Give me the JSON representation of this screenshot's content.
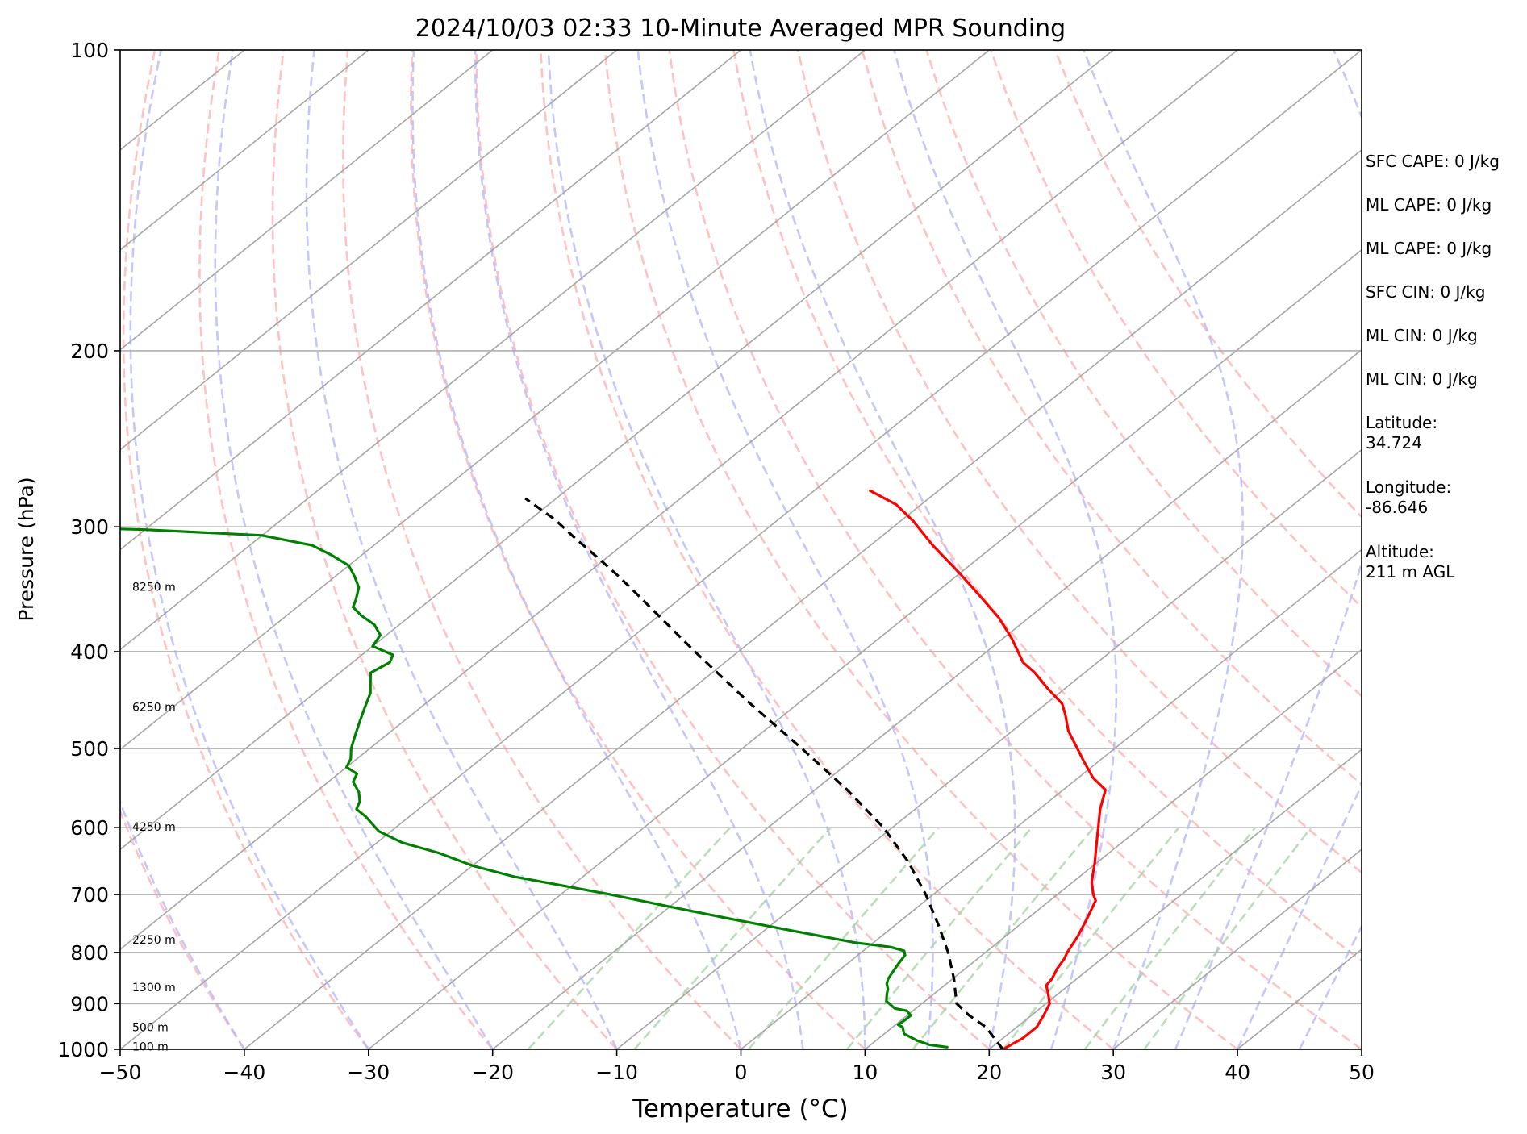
{
  "chart_data": {
    "type": "line",
    "subtype": "skew-T log-P diagram",
    "title": "2024/10/03 02:33 10-Minute Averaged MPR Sounding",
    "xlabel": "Temperature (°C)",
    "ylabel": "Pressure (hPa)",
    "xlim": [
      -50,
      50
    ],
    "ylim": [
      1000,
      100
    ],
    "y_scale": "log",
    "grid": true,
    "x_ticks": [
      "−50",
      "−40",
      "−30",
      "−20",
      "−10",
      "0",
      "10",
      "20",
      "30",
      "40",
      "50"
    ],
    "y_ticks": [
      "100",
      "200",
      "300",
      "400",
      "500",
      "600",
      "700",
      "800",
      "900",
      "1000"
    ],
    "height_labels": [
      {
        "p": 995,
        "label": "100 m"
      },
      {
        "p": 952,
        "label": "500 m"
      },
      {
        "p": 868,
        "label": "1300 m"
      },
      {
        "p": 778,
        "label": "2250 m"
      },
      {
        "p": 600,
        "label": "4250 m"
      },
      {
        "p": 455,
        "label": "6250 m"
      },
      {
        "p": 345,
        "label": "8250 m"
      }
    ],
    "series": [
      {
        "role": "temperature",
        "color": "#ff0000",
        "style": "solid",
        "points": [
          [
            21.1,
            1000
          ],
          [
            21.6,
            975
          ],
          [
            21.6,
            950
          ],
          [
            21.0,
            925
          ],
          [
            20.3,
            900
          ],
          [
            19.2,
            880
          ],
          [
            18.2,
            863
          ],
          [
            18.0,
            850
          ],
          [
            17.4,
            830
          ],
          [
            17.0,
            812
          ],
          [
            16.6,
            800
          ],
          [
            15.8,
            770
          ],
          [
            14.8,
            740
          ],
          [
            13.7,
            710
          ],
          [
            12.9,
            700
          ],
          [
            11.5,
            680
          ],
          [
            9.8,
            650
          ],
          [
            7.9,
            620
          ],
          [
            6.6,
            600
          ],
          [
            4.9,
            575
          ],
          [
            3.4,
            550
          ],
          [
            1.2,
            535
          ],
          [
            -1.2,
            515
          ],
          [
            -3.0,
            500
          ],
          [
            -5.5,
            480
          ],
          [
            -7.3,
            463
          ],
          [
            -8.7,
            451
          ],
          [
            -11.3,
            436
          ],
          [
            -14.0,
            420
          ],
          [
            -16.0,
            410
          ],
          [
            -19.3,
            388
          ],
          [
            -22.4,
            370
          ],
          [
            -26.5,
            350
          ],
          [
            -30.0,
            334
          ],
          [
            -35.0,
            313
          ],
          [
            -39.0,
            296
          ],
          [
            -42.0,
            285
          ],
          [
            -45.5,
            276
          ]
        ]
      },
      {
        "role": "dewpoint",
        "color": "#008000",
        "style": "solid",
        "points": [
          [
            16.4,
            995
          ],
          [
            14.8,
            990
          ],
          [
            13.3,
            980
          ],
          [
            11.6,
            965
          ],
          [
            10.8,
            950
          ],
          [
            10.2,
            945
          ],
          [
            10.3,
            935
          ],
          [
            10.3,
            925
          ],
          [
            9.5,
            915
          ],
          [
            8.3,
            910
          ],
          [
            6.9,
            895
          ],
          [
            6.2,
            880
          ],
          [
            5.8,
            870
          ],
          [
            5.2,
            860
          ],
          [
            4.8,
            850
          ],
          [
            4.1,
            820
          ],
          [
            3.8,
            805
          ],
          [
            3.3,
            797
          ],
          [
            1.8,
            790
          ],
          [
            -1.5,
            782
          ],
          [
            -8.0,
            760
          ],
          [
            -14.0,
            740
          ],
          [
            -20.0,
            720
          ],
          [
            -26.0,
            700
          ],
          [
            -31.0,
            685
          ],
          [
            -35.5,
            672
          ],
          [
            -40.0,
            655
          ],
          [
            -44.0,
            636
          ],
          [
            -48.0,
            621
          ],
          [
            -51.0,
            605
          ],
          [
            -53.5,
            585
          ],
          [
            -55.0,
            575
          ],
          [
            -55.5,
            565
          ],
          [
            -56.5,
            553
          ],
          [
            -58.0,
            540
          ],
          [
            -58.5,
            530
          ],
          [
            -60.0,
            522
          ],
          [
            -60.5,
            512
          ],
          [
            -61.5,
            500
          ],
          [
            -62.5,
            485
          ],
          [
            -63.5,
            470
          ],
          [
            -64.5,
            455
          ],
          [
            -65.5,
            440
          ],
          [
            -66.5,
            430
          ],
          [
            -67.5,
            420
          ],
          [
            -67.0,
            410
          ],
          [
            -67.5,
            403
          ],
          [
            -70.0,
            395
          ],
          [
            -70.5,
            385
          ],
          [
            -72.0,
            376
          ],
          [
            -74.0,
            368
          ],
          [
            -75.5,
            361
          ],
          [
            -76.0,
            355
          ],
          [
            -77.0,
            345
          ],
          [
            -78.5,
            336
          ],
          [
            -80.0,
            328
          ],
          [
            -82.5,
            320
          ],
          [
            -85.0,
            313
          ],
          [
            -90.0,
            306
          ],
          [
            -100.0,
            302
          ],
          [
            -108.0,
            300
          ]
        ]
      },
      {
        "role": "parcel profile",
        "color": "#000000",
        "style": "dashed",
        "points": [
          [
            21.1,
            1000
          ],
          [
            17.5,
            950
          ],
          [
            15.0,
            925
          ],
          [
            12.8,
            900
          ],
          [
            10.1,
            850
          ],
          [
            7.0,
            800
          ],
          [
            3.4,
            750
          ],
          [
            -0.6,
            700
          ],
          [
            -5.2,
            650
          ],
          [
            -10.7,
            600
          ],
          [
            -17.4,
            550
          ],
          [
            -25.2,
            500
          ],
          [
            -34.0,
            450
          ],
          [
            -43.5,
            400
          ],
          [
            -54.0,
            350
          ],
          [
            -57.0,
            337
          ],
          [
            -60.5,
            323
          ],
          [
            -64.5,
            308
          ],
          [
            -68.0,
            295
          ],
          [
            -72.5,
            281
          ]
        ]
      }
    ],
    "annotations": [
      {
        "label": "SFC CAPE: 0 J/kg"
      },
      {
        "label": "ML CAPE: 0 J/kg"
      },
      {
        "label": "ML CAPE: 0 J/kg"
      },
      {
        "label": "SFC CIN: 0 J/kg"
      },
      {
        "label": "ML CIN: 0 J/kg"
      },
      {
        "label": "ML CIN: 0 J/kg"
      }
    ],
    "location": {
      "latitude_label": "Latitude:",
      "latitude": "34.724",
      "longitude_label": "Longitude:",
      "longitude": "-86.646",
      "altitude_label": "Altitude:",
      "altitude": "211 m AGL"
    },
    "background_lines": {
      "isotherms": {
        "color": "#a6a6a6",
        "temps": [
          -140,
          -130,
          -120,
          -110,
          -100,
          -90,
          -80,
          -70,
          -60,
          -50,
          -40,
          -30,
          -20,
          -10,
          0,
          10,
          20,
          30,
          40,
          50
        ]
      },
      "dry_adiabats": {
        "color": "#ff9999",
        "thetas_c": [
          -50,
          -40,
          -30,
          -20,
          -10,
          0,
          10,
          20,
          30,
          40,
          50,
          60,
          70,
          80,
          90,
          100,
          110
        ]
      },
      "moist_adiabats": {
        "color": "#b3b3ff",
        "start_temps_c": [
          -40,
          -30,
          -20,
          -10,
          0,
          5,
          10,
          15,
          20,
          25,
          30,
          35,
          40,
          45
        ]
      },
      "mixing_ratio_lines": {
        "color": "#a3d1a3",
        "w_gkg": [
          1,
          2,
          4,
          7,
          10,
          16,
          24,
          32
        ]
      }
    }
  }
}
